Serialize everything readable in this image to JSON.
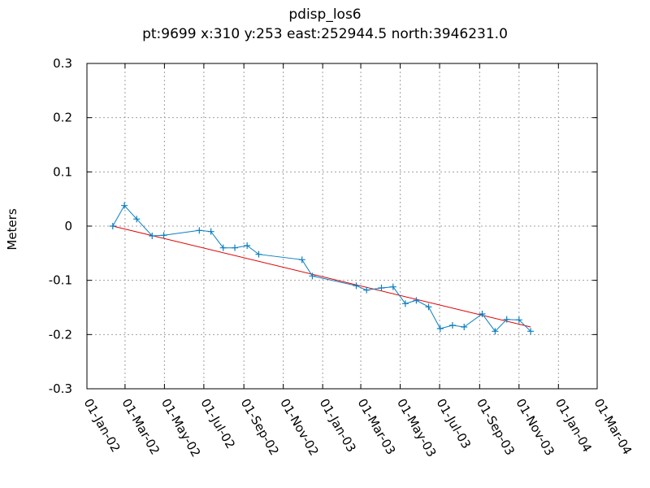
{
  "chart_data": {
    "type": "line",
    "title": "pdisp_los6",
    "subtitle": "pt:9699  x:310  y:253  east:252944.5  north:3946231.0",
    "ylabel": "Meters",
    "xlabel": "",
    "ylim": [
      -0.3,
      0.3
    ],
    "yticks": [
      "0.3",
      "0.2",
      "0.1",
      "0",
      "-0.1",
      "-0.2",
      "-0.3"
    ],
    "xlim": [
      "2002-01-01",
      "2004-03-01"
    ],
    "xticks": [
      {
        "label": "01-Jan-02",
        "date": "2002-01-01"
      },
      {
        "label": "01-Mar-02",
        "date": "2002-03-01"
      },
      {
        "label": "01-May-02",
        "date": "2002-05-01"
      },
      {
        "label": "01-Jul-02",
        "date": "2002-07-01"
      },
      {
        "label": "01-Sep-02",
        "date": "2002-09-01"
      },
      {
        "label": "01-Nov-02",
        "date": "2002-11-01"
      },
      {
        "label": "01-Jan-03",
        "date": "2003-01-01"
      },
      {
        "label": "01-Mar-03",
        "date": "2003-03-01"
      },
      {
        "label": "01-May-03",
        "date": "2003-05-01"
      },
      {
        "label": "01-Jul-03",
        "date": "2003-07-01"
      },
      {
        "label": "01-Sep-03",
        "date": "2003-09-01"
      },
      {
        "label": "01-Nov-03",
        "date": "2003-11-01"
      },
      {
        "label": "01-Jan-04",
        "date": "2004-01-01"
      },
      {
        "label": "01-Mar-04",
        "date": "2004-03-01"
      }
    ],
    "grid": true,
    "series": [
      {
        "color": "#0a7fc0",
        "marker": "+",
        "points": [
          {
            "x": "2002-02-10",
            "y": 0.0
          },
          {
            "x": "2002-02-28",
            "y": 0.038
          },
          {
            "x": "2002-03-19",
            "y": 0.013
          },
          {
            "x": "2002-04-12",
            "y": -0.018
          },
          {
            "x": "2002-04-30",
            "y": -0.017
          },
          {
            "x": "2002-06-24",
            "y": -0.008
          },
          {
            "x": "2002-07-12",
            "y": -0.01
          },
          {
            "x": "2002-07-31",
            "y": -0.04
          },
          {
            "x": "2002-08-18",
            "y": -0.04
          },
          {
            "x": "2002-09-06",
            "y": -0.036
          },
          {
            "x": "2002-09-24",
            "y": -0.052
          },
          {
            "x": "2002-11-30",
            "y": -0.062
          },
          {
            "x": "2002-12-16",
            "y": -0.092
          },
          {
            "x": "2003-02-22",
            "y": -0.11
          },
          {
            "x": "2003-03-10",
            "y": -0.118
          },
          {
            "x": "2003-04-02",
            "y": -0.114
          },
          {
            "x": "2003-04-20",
            "y": -0.112
          },
          {
            "x": "2003-05-09",
            "y": -0.143
          },
          {
            "x": "2003-05-26",
            "y": -0.137
          },
          {
            "x": "2003-06-14",
            "y": -0.149
          },
          {
            "x": "2003-07-02",
            "y": -0.189
          },
          {
            "x": "2003-07-21",
            "y": -0.183
          },
          {
            "x": "2003-08-08",
            "y": -0.186
          },
          {
            "x": "2003-09-05",
            "y": -0.162
          },
          {
            "x": "2003-09-25",
            "y": -0.194
          },
          {
            "x": "2003-10-13",
            "y": -0.172
          },
          {
            "x": "2003-11-01",
            "y": -0.173
          },
          {
            "x": "2003-11-19",
            "y": -0.194
          }
        ]
      },
      {
        "color": "#e00000",
        "marker": "none",
        "points": [
          {
            "x": "2002-02-10",
            "y": 0.0
          },
          {
            "x": "2003-11-19",
            "y": -0.186
          }
        ]
      }
    ]
  }
}
